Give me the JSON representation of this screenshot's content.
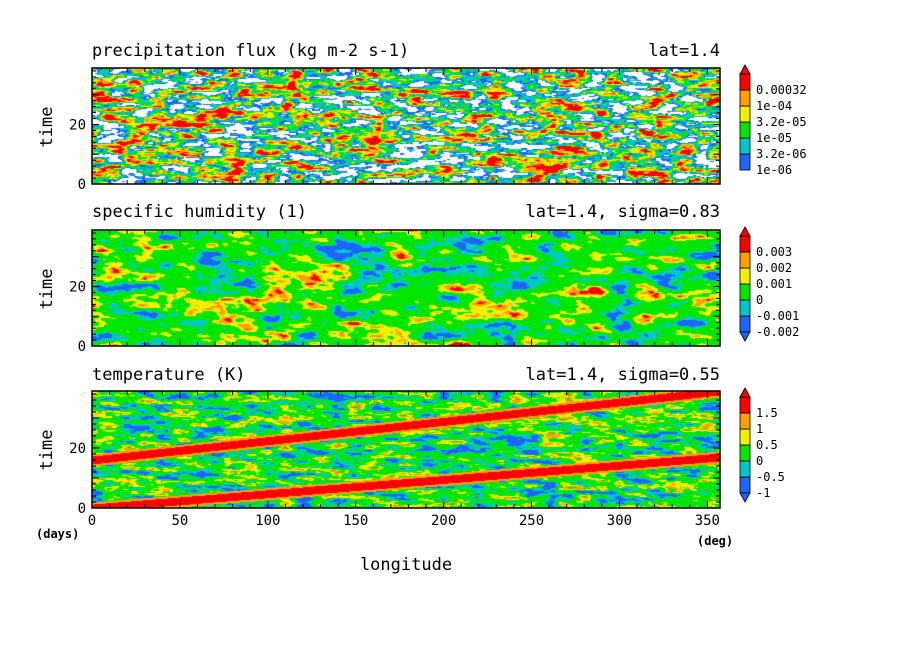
{
  "colors": {
    "blue": "#1e64ff",
    "cyan": "#00c8c8",
    "green": "#00e600",
    "yellow": "#f0f000",
    "orange": "#ffa000",
    "red": "#ff0000",
    "frame": "#000000"
  },
  "x_axis": {
    "label": "longitude",
    "unit_left": "(days)",
    "unit_right": "(deg)",
    "ticks": [
      0,
      50,
      100,
      150,
      200,
      250,
      300,
      350
    ],
    "range": [
      0,
      357.2
    ]
  },
  "chart_data": [
    {
      "type": "heatmap",
      "title": "precipitation flux (kg m-2 s-1)",
      "title_right": "lat=1.4",
      "xlabel": "longitude",
      "ylabel": "time",
      "xlim": [
        0,
        357.2
      ],
      "ylim": [
        0,
        39
      ],
      "yticks": [
        "0",
        "20"
      ],
      "colorbar": {
        "levels": [
          "1e-06",
          "3.2e-06",
          "1e-05",
          "3.2e-05",
          "1e-04",
          "0.00032"
        ],
        "colors": [
          "#1e64ff",
          "#00c8c8",
          "#00e600",
          "#f0f000",
          "#ffa000",
          "#ff0000"
        ],
        "extend_below": false,
        "extend_above": true,
        "below_min": "#ffffff"
      },
      "pattern": "sparse eastward-propagating precipitation streaks with white (below 1e-06) gaps"
    },
    {
      "type": "heatmap",
      "title": "specific humidity (1)",
      "title_right": "lat=1.4, sigma=0.83",
      "xlabel": "longitude",
      "ylabel": "time",
      "xlim": [
        0,
        357.2
      ],
      "ylim": [
        0,
        39
      ],
      "yticks": [
        "0",
        "20"
      ],
      "colorbar": {
        "levels": [
          "-0.002",
          "-0.001",
          "0",
          "0.001",
          "0.002",
          "0.003"
        ],
        "colors": [
          "#1e64ff",
          "#00c8c8",
          "#00e600",
          "#f0f000",
          "#ffa000",
          "#ff0000"
        ],
        "extend_below": true,
        "extend_above": true
      },
      "pattern": "anomaly field dominated by near-zero values with slanted moist and dry bands"
    },
    {
      "type": "heatmap",
      "title": "temperature (K)",
      "title_right": "lat=1.4, sigma=0.55",
      "xlabel": "longitude",
      "ylabel": "time",
      "xlim": [
        0,
        357.2
      ],
      "ylim": [
        0,
        39
      ],
      "yticks": [
        "0",
        "20"
      ],
      "colorbar": {
        "levels": [
          "-1",
          "-0.5",
          "0",
          "0.5",
          "1",
          "1.5"
        ],
        "colors": [
          "#1e64ff",
          "#00c8c8",
          "#00e600",
          "#f0f000",
          "#ffa000",
          "#ff0000"
        ],
        "extend_below": true,
        "extend_above": true
      },
      "pattern": "two warm (>1.5 K) bands propagating eastward: from day 0 at lon 0 to day 17 at lon 357, and from day 16 at lon 0 to day 39 at lon 357",
      "warm_bands": [
        {
          "from": [
            0,
            0
          ],
          "to": [
            357.2,
            17
          ]
        },
        {
          "from": [
            0,
            16
          ],
          "to": [
            357.2,
            39
          ]
        }
      ]
    }
  ]
}
